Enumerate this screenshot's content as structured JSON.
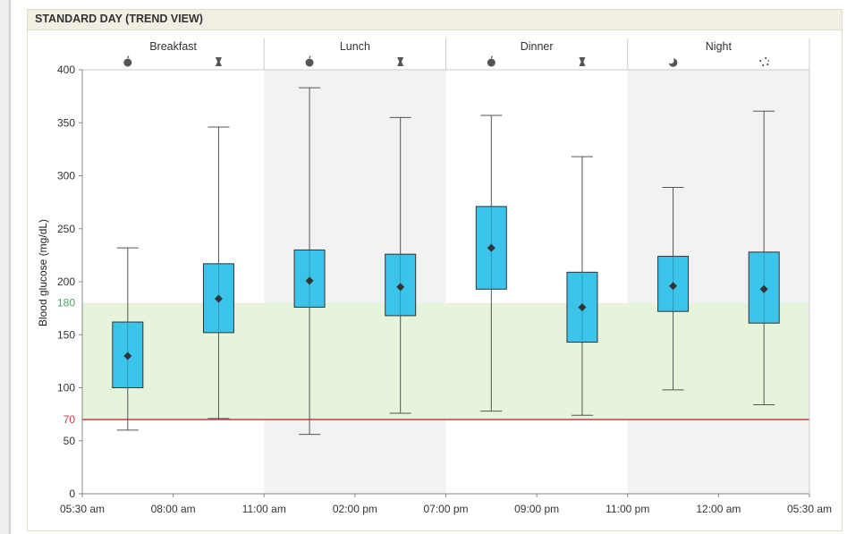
{
  "panel": {
    "title": "STANDARD DAY (TREND VIEW)"
  },
  "chart_data": {
    "type": "box",
    "ylabel": "Blood glucose (mg/dL)",
    "ylim": [
      0,
      400
    ],
    "y_ticks": [
      "0",
      "50",
      "100",
      "150",
      "200",
      "250",
      "300",
      "350",
      "400"
    ],
    "target_range": {
      "low": 70,
      "high": 180,
      "low_label": "70",
      "high_label": "180",
      "band_color": "#e6f4dc",
      "low_line_color": "#d2334c",
      "high_label_color": "#4aa56a"
    },
    "x_ticks": [
      "05:30 am",
      "08:00 am",
      "11:00 am",
      "02:00 pm",
      "07:00 pm",
      "09:00 pm",
      "11:00 pm",
      "12:00 am",
      "05:30 am"
    ],
    "periods": [
      {
        "label": "Breakfast",
        "shaded": false
      },
      {
        "label": "Lunch",
        "shaded": true
      },
      {
        "label": "Dinner",
        "shaded": false
      },
      {
        "label": "Night",
        "shaded": true
      }
    ],
    "slot_icons": [
      "apple-icon",
      "apple-core-icon",
      "apple-icon",
      "apple-core-icon",
      "apple-icon",
      "apple-core-icon",
      "moon-icon",
      "sparkle-icon"
    ],
    "boxes": [
      {
        "min": 60,
        "q1": 100,
        "mean": 130,
        "q3": 162,
        "max": 232
      },
      {
        "min": 71,
        "q1": 152,
        "mean": 184,
        "q3": 217,
        "max": 346
      },
      {
        "min": 56,
        "q1": 176,
        "mean": 201,
        "q3": 230,
        "max": 383
      },
      {
        "min": 76,
        "q1": 168,
        "mean": 195,
        "q3": 226,
        "max": 355
      },
      {
        "min": 78,
        "q1": 193,
        "mean": 232,
        "q3": 271,
        "max": 357
      },
      {
        "min": 74,
        "q1": 143,
        "mean": 176,
        "q3": 209,
        "max": 318
      },
      {
        "min": 98,
        "q1": 172,
        "mean": 196,
        "q3": 224,
        "max": 289
      },
      {
        "min": 84,
        "q1": 161,
        "mean": 193,
        "q3": 228,
        "max": 361
      }
    ],
    "box_color": "#3cc3ea",
    "shade_color": "#f2f2f2"
  }
}
